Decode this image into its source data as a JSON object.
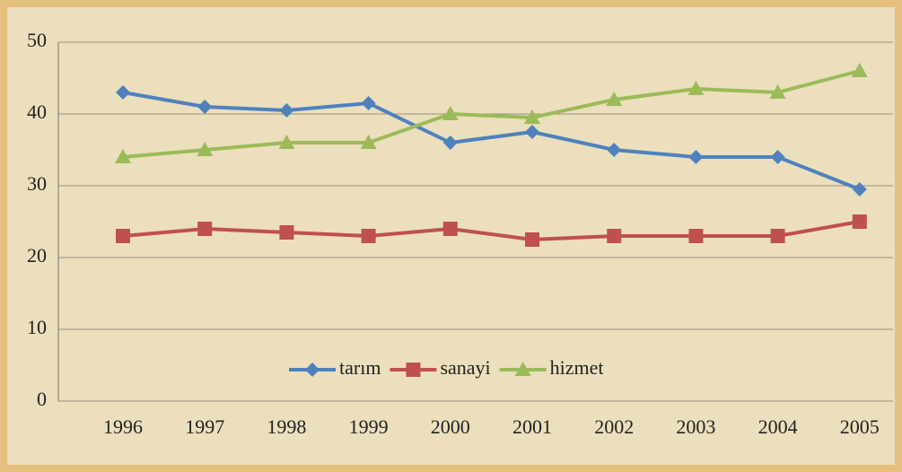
{
  "chart_data": {
    "type": "line",
    "categories": [
      "1996",
      "1997",
      "1998",
      "1999",
      "2000",
      "2001",
      "2002",
      "2003",
      "2004",
      "2005"
    ],
    "series": [
      {
        "name": "tarım",
        "color": "#4f81bd",
        "marker": "diamond",
        "values": [
          43,
          41,
          40.5,
          41.5,
          36,
          37.5,
          35,
          34,
          34,
          29.5
        ]
      },
      {
        "name": "sanayi",
        "color": "#c0504d",
        "marker": "square",
        "values": [
          23,
          24,
          23.5,
          23,
          24,
          22.5,
          23,
          23,
          23,
          25
        ]
      },
      {
        "name": "hizmet",
        "color": "#9bbb59",
        "marker": "triangle",
        "values": [
          34,
          35,
          36,
          36,
          40,
          39.5,
          42,
          43.5,
          43,
          46
        ]
      }
    ],
    "ylim": [
      0,
      50
    ],
    "yticks": [
      0,
      10,
      20,
      30,
      40,
      50
    ],
    "grid": true,
    "legend": "bottom"
  }
}
